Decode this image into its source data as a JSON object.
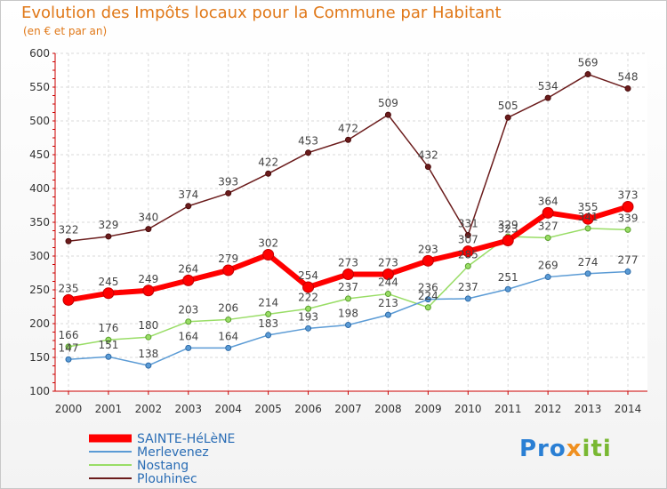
{
  "chart_data": {
    "type": "line",
    "title": "Evolution des Impôts locaux pour la Commune par Habitant",
    "subtitle": "(en € et par an)",
    "xlabel": "",
    "ylabel": "",
    "ylim": [
      100,
      600
    ],
    "yticks": [
      100,
      150,
      200,
      250,
      300,
      350,
      400,
      450,
      500,
      550,
      600
    ],
    "x": [
      "2000",
      "2001",
      "2002",
      "2003",
      "2004",
      "2005",
      "2006",
      "2007",
      "2008",
      "2009",
      "2010",
      "2011",
      "2012",
      "2013",
      "2014"
    ],
    "series": [
      {
        "name": "SAINTE-HéLèNE",
        "color": "#ff0000",
        "values": [
          235,
          245,
          249,
          264,
          279,
          302,
          254,
          273,
          273,
          293,
          307,
          323,
          364,
          355,
          373
        ]
      },
      {
        "name": "Merlevenez",
        "color": "#5b9bd5",
        "values": [
          147,
          151,
          138,
          164,
          164,
          183,
          193,
          198,
          213,
          236,
          237,
          251,
          269,
          274,
          277
        ]
      },
      {
        "name": "Nostang",
        "color": "#99dd66",
        "values": [
          166,
          176,
          180,
          203,
          206,
          214,
          222,
          237,
          244,
          224,
          285,
          329,
          327,
          341,
          339
        ]
      },
      {
        "name": "Plouhinec",
        "color": "#6b1c1c",
        "values": [
          322,
          329,
          340,
          374,
          393,
          422,
          453,
          472,
          509,
          432,
          331,
          505,
          534,
          569,
          548
        ]
      }
    ],
    "legend_position": "bottom-left"
  },
  "logo": {
    "part1": "Pro",
    "part2": "x",
    "part3": "iti"
  }
}
